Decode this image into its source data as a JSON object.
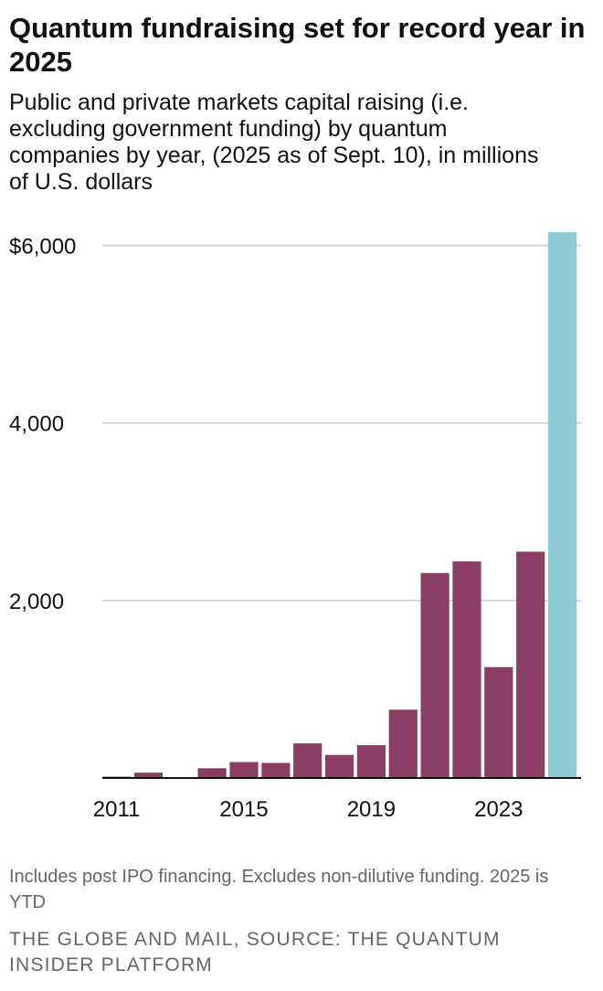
{
  "title": "Quantum fundraising set for record year in 2025",
  "subtitle": "Public and private markets capital raising (i.e. excluding government funding) by quantum companies by year, (2025 as of Sept. 10), in millions of U.S. dollars",
  "note": "Includes post IPO financing. Excludes non-dilutive funding. 2025 is YTD",
  "source": "THE GLOBE AND MAIL, SOURCE: THE QUANTUM INSIDER PLATFORM",
  "colors": {
    "bar": "#8b3e63",
    "highlight": "#8fcbd6",
    "grid": "#cccccc",
    "axis": "#111111"
  },
  "chart_data": {
    "type": "bar",
    "title": "Quantum fundraising set for record year in 2025",
    "xlabel": "",
    "ylabel": "",
    "x": [
      2011,
      2012,
      2013,
      2014,
      2015,
      2016,
      2017,
      2018,
      2019,
      2020,
      2021,
      2022,
      2023,
      2024,
      2025
    ],
    "values": [
      15,
      60,
      5,
      110,
      180,
      170,
      390,
      260,
      370,
      770,
      2310,
      2440,
      1250,
      2550,
      6150
    ],
    "highlight_category": 2025,
    "ylim": [
      0,
      6150
    ],
    "yticks": [
      2000,
      4000,
      6000
    ],
    "ytick_labels": [
      "2,000",
      "4,000",
      "$6,000"
    ],
    "xtick_labels": [
      "2011",
      "2015",
      "2019",
      "2023"
    ],
    "grid": true
  }
}
